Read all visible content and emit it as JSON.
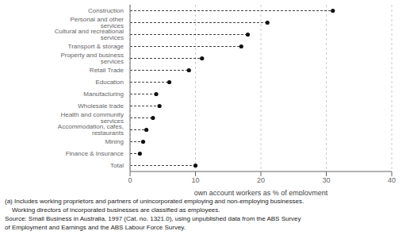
{
  "chart_data": {
    "type": "lollipop",
    "orientation": "horizontal",
    "categories": [
      "Construction",
      "Personal and other services",
      "Cultural and recreational services",
      "Transport & storage",
      "Property and business services",
      "Retail Trade",
      "Education",
      "Manufacturing",
      "Wholesale trade",
      "Health and community services",
      "Accommodation, cafes, restaurants",
      "Mining",
      "Finance & Insurance",
      "Total"
    ],
    "values": [
      31.0,
      21.0,
      18.0,
      17.0,
      11.0,
      9.0,
      6.0,
      4.0,
      4.5,
      3.5,
      2.5,
      2.0,
      1.5,
      10.0
    ],
    "xlabel": "own account workers as % of employment",
    "xlim": [
      0,
      40
    ],
    "xticks": [
      0,
      10,
      20,
      30,
      40
    ],
    "grid": true,
    "color": "#111111",
    "line_style": "dashed",
    "annotations": [
      "(a) Includes working proprietors and partners of unincorporated employing and non-employing businesses.",
      "    Working directors of incorporated businesses are classified as employees.",
      "Source: Small Business in Australia, 1997 (Cat. no. 1321.0), using unpublished data from the ABS Survey",
      "of Employment and Earnings and the ABS Labour Force Survey."
    ]
  }
}
